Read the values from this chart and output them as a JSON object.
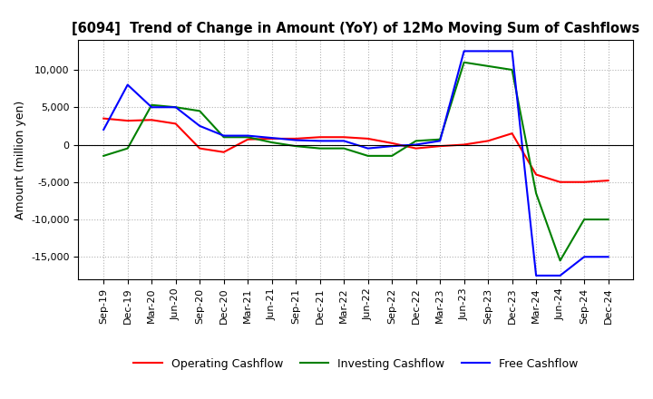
{
  "title": "[6094]  Trend of Change in Amount (YoY) of 12Mo Moving Sum of Cashflows",
  "ylabel": "Amount (million yen)",
  "x_labels": [
    "Sep-19",
    "Dec-19",
    "Mar-20",
    "Jun-20",
    "Sep-20",
    "Dec-20",
    "Mar-21",
    "Jun-21",
    "Sep-21",
    "Dec-21",
    "Mar-22",
    "Jun-22",
    "Sep-22",
    "Dec-22",
    "Mar-23",
    "Jun-23",
    "Sep-23",
    "Dec-23",
    "Mar-24",
    "Jun-24",
    "Sep-24",
    "Dec-24"
  ],
  "operating_cashflow": [
    3500,
    3200,
    3300,
    2800,
    -500,
    -1000,
    700,
    800,
    800,
    1000,
    1000,
    800,
    200,
    -500,
    -200,
    0,
    500,
    1500,
    -4000,
    -5000,
    -5000,
    -4800
  ],
  "investing_cashflow": [
    -1500,
    -500,
    5300,
    5000,
    4500,
    1000,
    1000,
    300,
    -200,
    -500,
    -500,
    -1500,
    -1500,
    500,
    700,
    11000,
    10500,
    10000,
    -6500,
    -15500,
    -10000,
    -10000
  ],
  "free_cashflow": [
    2000,
    8000,
    5000,
    5000,
    2500,
    1200,
    1200,
    900,
    600,
    500,
    500,
    -500,
    -200,
    0,
    500,
    12500,
    12500,
    12500,
    -17500,
    -17500,
    -15000,
    -15000
  ],
  "ylim": [
    -18000,
    14000
  ],
  "yticks": [
    -15000,
    -10000,
    -5000,
    0,
    5000,
    10000
  ],
  "colors": {
    "operating": "#ff0000",
    "investing": "#008000",
    "free": "#0000ff"
  },
  "legend_labels": [
    "Operating Cashflow",
    "Investing Cashflow",
    "Free Cashflow"
  ],
  "grid_color": "#aaaaaa",
  "bg_color": "#ffffff"
}
